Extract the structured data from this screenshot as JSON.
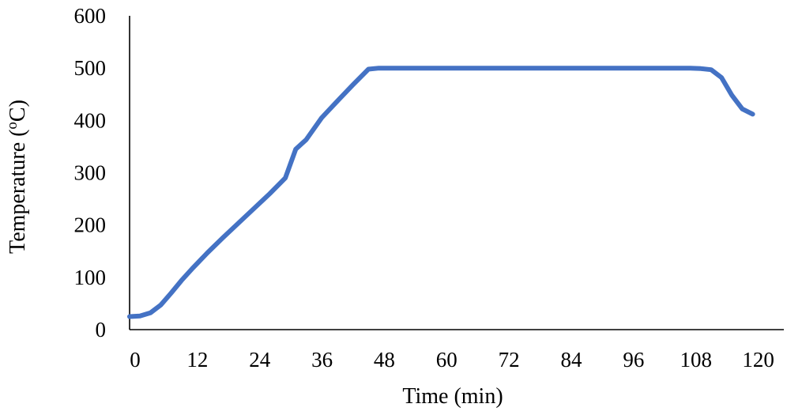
{
  "chart_data": {
    "type": "line",
    "title": "",
    "xlabel": "Time (min)",
    "ylabel_main": "Temperature (",
    "ylabel_sup": "o",
    "ylabel_tail": "C)",
    "xlim": [
      0,
      126
    ],
    "ylim": [
      0,
      600
    ],
    "x_ticks": [
      0,
      12,
      24,
      36,
      48,
      60,
      72,
      84,
      96,
      108,
      120
    ],
    "y_ticks": [
      0,
      100,
      200,
      300,
      400,
      500,
      600
    ],
    "grid": false,
    "legend": "none",
    "series": [
      {
        "color": "#4472C4",
        "x": [
          0,
          2,
          4,
          6,
          8,
          10,
          12,
          15,
          18,
          21,
          24,
          27,
          30,
          32,
          34,
          37,
          40,
          43,
          46,
          48,
          60,
          72,
          84,
          96,
          108,
          110,
          112,
          114,
          116,
          118,
          120
        ],
        "y": [
          25,
          26,
          32,
          47,
          70,
          94,
          116,
          147,
          176,
          204,
          232,
          260,
          290,
          345,
          363,
          405,
          437,
          468,
          498,
          500,
          500,
          500,
          500,
          500,
          500,
          499,
          497,
          482,
          448,
          422,
          412
        ]
      }
    ]
  }
}
